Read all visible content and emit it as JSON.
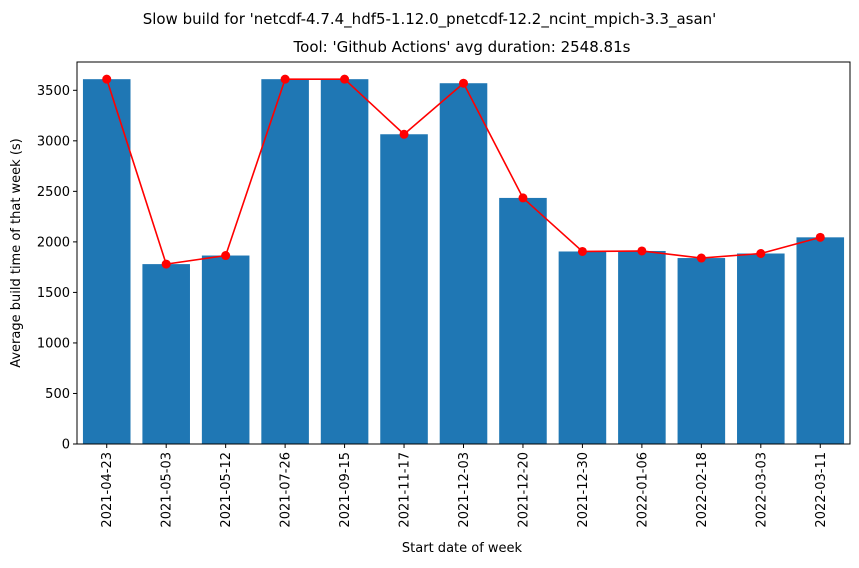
{
  "chart_data": {
    "type": "bar",
    "title": "Slow build for 'netcdf-4.7.4_hdf5-1.12.0_pnetcdf-12.2_ncint_mpich-3.3_asan'",
    "subtitle": "Tool: 'Github Actions' avg duration: 2548.81s",
    "xlabel": "Start date of week",
    "ylabel": "Average build time of that week (s)",
    "categories": [
      "2021-04-23",
      "2021-05-03",
      "2021-05-12",
      "2021-07-26",
      "2021-09-15",
      "2021-11-17",
      "2021-12-03",
      "2021-12-20",
      "2021-12-30",
      "2022-01-06",
      "2022-02-18",
      "2022-03-03",
      "2022-03-11"
    ],
    "values": [
      3610,
      1780,
      1865,
      3610,
      3610,
      3065,
      3570,
      2435,
      1905,
      1910,
      1840,
      1885,
      2045
    ],
    "ylim": [
      0,
      3780
    ],
    "yticks": [
      0,
      500,
      1000,
      1500,
      2000,
      2500,
      3000,
      3500
    ],
    "bar_color": "#1f77b4",
    "line_color": "#ff0000",
    "overlay": "line with circle markers through bar tops",
    "grid": false,
    "legend": "none"
  }
}
